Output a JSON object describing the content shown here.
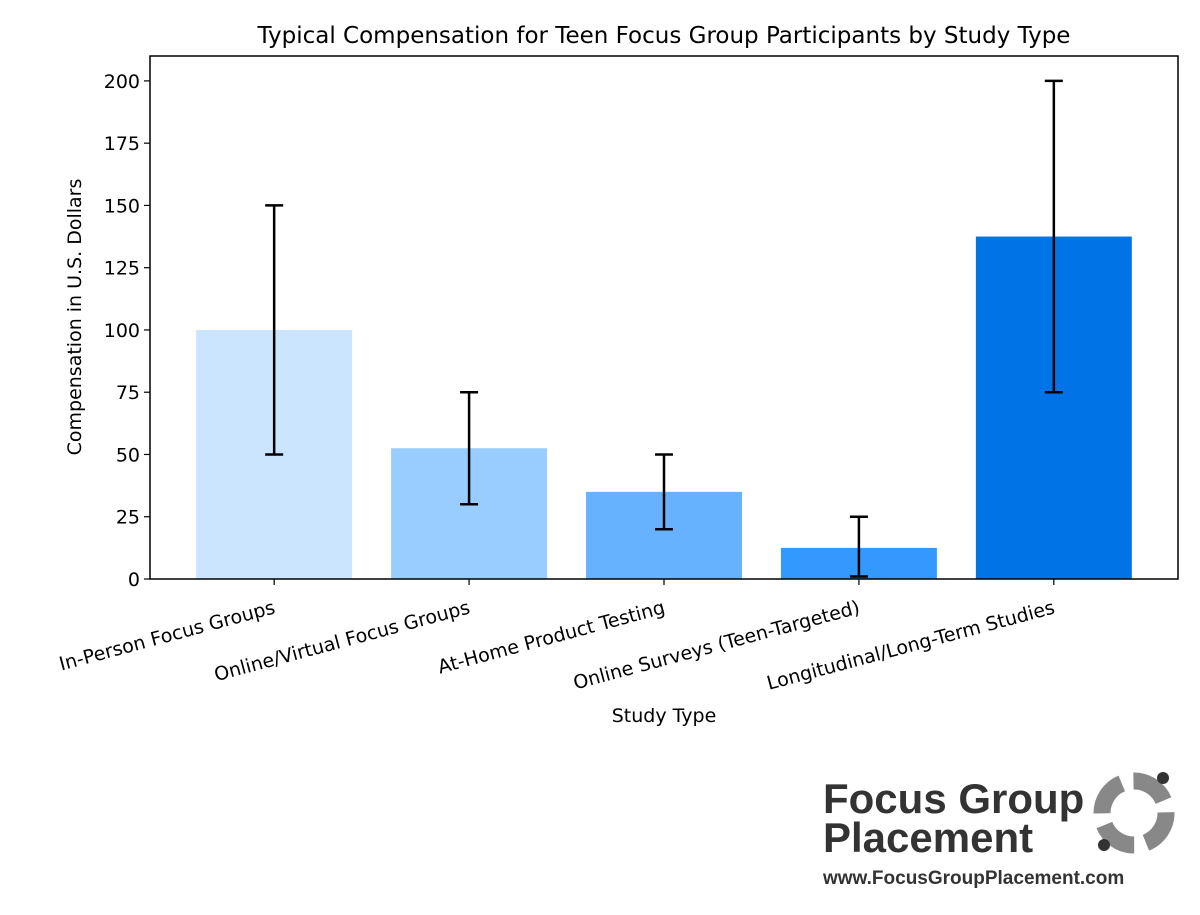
{
  "chart_data": {
    "type": "bar",
    "title": "Typical Compensation for Teen Focus Group Participants by Study Type",
    "x_label": "Study Type",
    "y_label": "Compensation in U.S. Dollars",
    "categories": [
      "In-Person Focus Groups",
      "Online/Virtual Focus Groups",
      "At-Home Product Testing",
      "Online Surveys (Teen-Targeted)",
      "Longitudinal/Long-Term Studies"
    ],
    "values": [
      100,
      52.5,
      35,
      12.5,
      137.5
    ],
    "error_minus": [
      50,
      22.5,
      15,
      11.5,
      62.5
    ],
    "error_plus": [
      50,
      22.5,
      15,
      12.5,
      62.5
    ],
    "colors": [
      "#cce5ff",
      "#99ccff",
      "#66b2ff",
      "#3399ff",
      "#0073e6"
    ],
    "ylim": [
      0,
      210
    ],
    "yticks": [
      0,
      25,
      50,
      75,
      100,
      125,
      150,
      175,
      200
    ]
  },
  "logo": {
    "name_line1": "Focus Group",
    "name_line2": "Placement",
    "url": "www.FocusGroupPlacement.com"
  }
}
